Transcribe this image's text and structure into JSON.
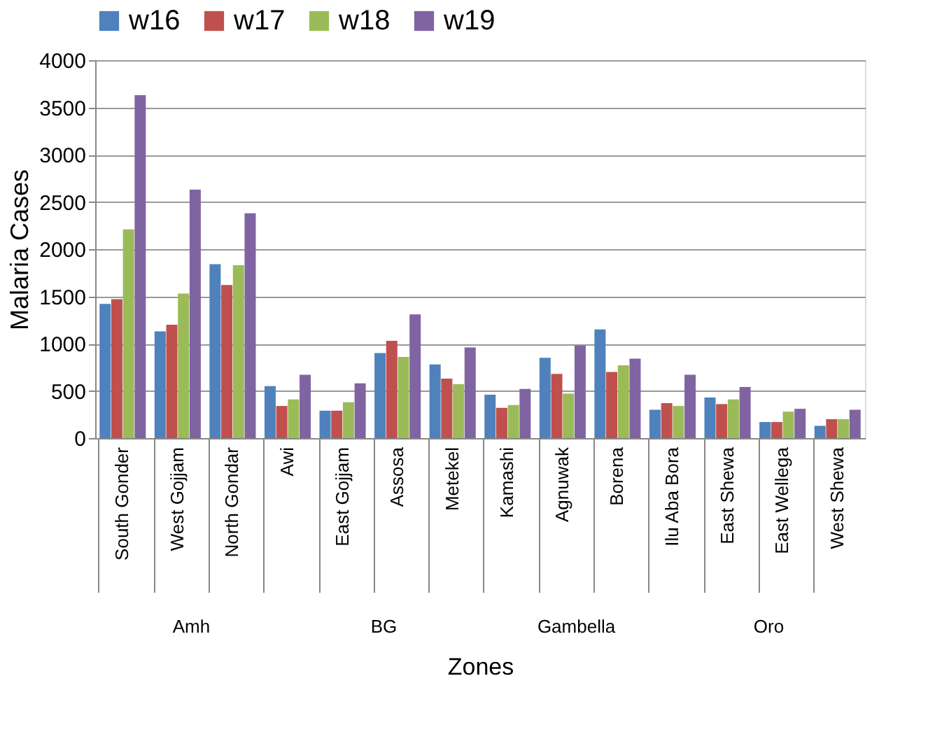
{
  "chart_data": {
    "type": "bar",
    "xlabel": "Zones",
    "ylabel": "Malaria Cases",
    "categories": [
      "South Gonder",
      "West Gojjam",
      "North Gondar",
      "Awi",
      "East Gojjam",
      "Assosa",
      "Metekel",
      "Kamashi",
      "Agnuwak",
      "Borena",
      "Ilu Aba Bora",
      "East Shewa",
      "East Wellega",
      "West Shewa"
    ],
    "series": [
      {
        "name": "w16",
        "color": "#4f81bd",
        "values": [
          1420,
          1130,
          1840,
          550,
          290,
          900,
          780,
          460,
          850,
          1150,
          300,
          430,
          170,
          130
        ]
      },
      {
        "name": "w17",
        "color": "#c0504d",
        "values": [
          1470,
          1200,
          1620,
          340,
          290,
          1030,
          630,
          320,
          680,
          700,
          370,
          360,
          170,
          200
        ]
      },
      {
        "name": "w18",
        "color": "#9bbb59",
        "values": [
          2210,
          1530,
          1830,
          410,
          380,
          860,
          570,
          350,
          470,
          770,
          340,
          410,
          280,
          200
        ]
      },
      {
        "name": "w19",
        "color": "#8064a2",
        "values": [
          3630,
          2630,
          2380,
          670,
          580,
          1310,
          960,
          520,
          980,
          840,
          670,
          540,
          310,
          300
        ]
      }
    ],
    "ylim": [
      0,
      4000
    ],
    "yticks": [
      0,
      500,
      1000,
      1500,
      2000,
      2500,
      3000,
      3500,
      4000
    ],
    "grid": "y",
    "legend": "top",
    "annotations": [
      "Amh",
      "BG",
      "Gambella",
      "Oro"
    ]
  }
}
